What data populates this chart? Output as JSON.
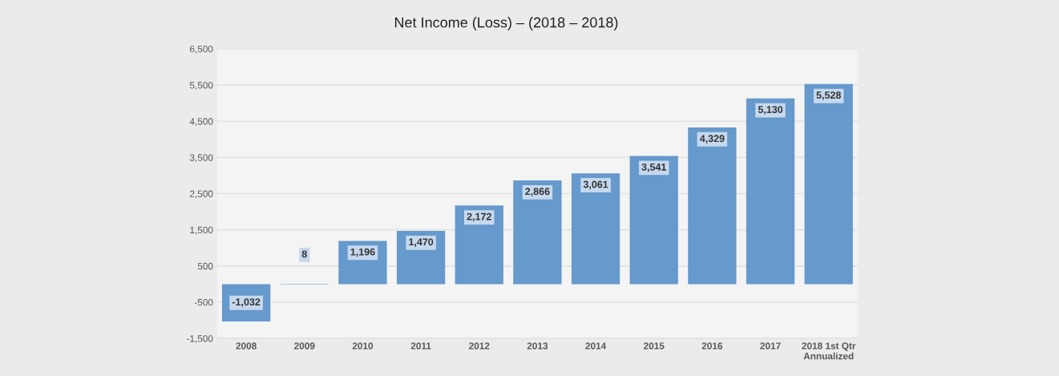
{
  "chart_data": {
    "type": "bar",
    "title": "Net Income (Loss) – (2018 – 2018)",
    "categories": [
      "2008",
      "2009",
      "2010",
      "2011",
      "2012",
      "2013",
      "2014",
      "2015",
      "2016",
      "2017",
      "2018 1st Qtr\nAnnualized"
    ],
    "values": [
      -1032,
      8,
      1196,
      1470,
      2172,
      2866,
      3061,
      3541,
      4329,
      5130,
      5528
    ],
    "value_labels": [
      "-1,032",
      "8",
      "1,196",
      "1,470",
      "2,172",
      "2,866",
      "3,061",
      "3,541",
      "4,329",
      "5,130",
      "5,528"
    ],
    "color": "#6699cc",
    "ylim": [
      -1500,
      6500
    ],
    "yticks": [
      {
        "value": -1500,
        "label": "-1,500"
      },
      {
        "value": -500,
        "label": "-500"
      },
      500,
      {
        "value": 1500,
        "label": "1,500"
      },
      {
        "value": 2500,
        "label": "2,500"
      },
      {
        "value": 3500,
        "label": "3,500"
      },
      {
        "value": 4500,
        "label": "4,500"
      },
      {
        "value": 5500,
        "label": "5,500"
      },
      {
        "value": 6500,
        "label": "6,500"
      }
    ],
    "grid": "y"
  }
}
